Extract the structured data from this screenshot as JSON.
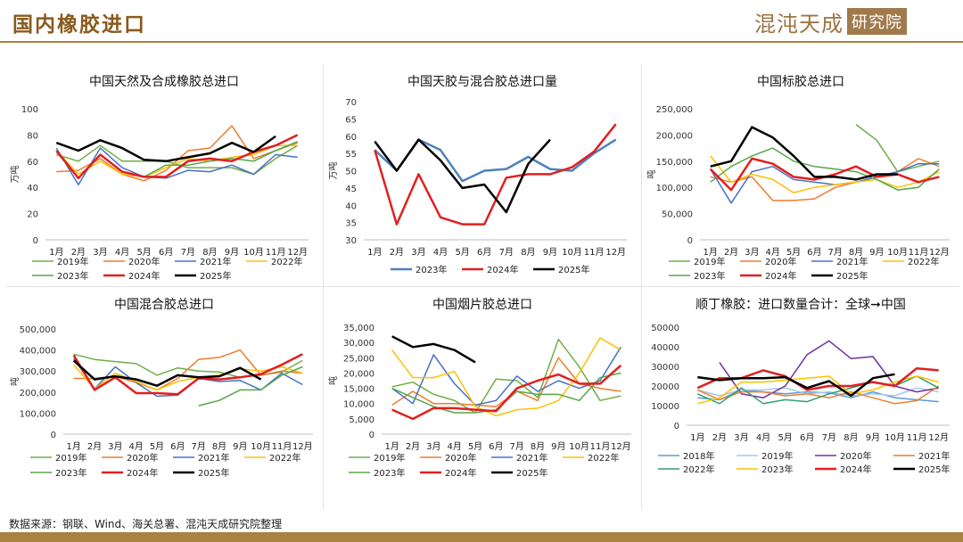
{
  "header": {
    "title": "国内橡胶进口",
    "logo_text": "混沌天成",
    "logo_badge": "研究院"
  },
  "source_note": "数据来源：钢联、Wind、海关总署、混沌天成研究院整理",
  "chart_data": [
    {
      "type": "line",
      "title": "中国天然及合成橡胶总进口",
      "ylabel": "万吨",
      "ylim": [
        0,
        100
      ],
      "yticks": [
        0,
        20,
        40,
        60,
        80,
        100
      ],
      "ytick_labels": [
        "0",
        "20",
        "40",
        "60",
        "80",
        "100"
      ],
      "categories": [
        "1月",
        "2月",
        "3月",
        "4月",
        "5月",
        "6月",
        "7月",
        "8月",
        "9月",
        "10月",
        "11月",
        "12月"
      ],
      "series": [
        {
          "name": "2019年",
          "color": "#70ad47",
          "width": 1.5,
          "values": [
            65,
            60,
            72,
            60,
            60,
            60,
            55,
            55,
            55,
            50,
            62,
            72
          ]
        },
        {
          "name": "2020年",
          "color": "#ed7d31",
          "width": 1.5,
          "values": [
            52,
            53,
            62,
            50,
            45,
            53,
            68,
            70,
            87,
            62,
            68,
            74
          ]
        },
        {
          "name": "2021年",
          "color": "#4472c4",
          "width": 1.5,
          "values": [
            70,
            42,
            70,
            55,
            48,
            47,
            53,
            52,
            57,
            50,
            65,
            63
          ]
        },
        {
          "name": "2022年",
          "color": "#ffc000",
          "width": 1.5,
          "values": [
            68,
            50,
            60,
            50,
            48,
            55,
            62,
            60,
            63,
            65,
            72,
            72
          ]
        },
        {
          "name": "2023年",
          "color": "#55a84a",
          "width": 1.5,
          "values": [
            67,
            47,
            65,
            52,
            48,
            57,
            57,
            60,
            62,
            60,
            68,
            75
          ]
        },
        {
          "name": "2024年",
          "color": "#e02020",
          "width": 2.5,
          "values": [
            68,
            47,
            65,
            52,
            48,
            48,
            60,
            62,
            60,
            67,
            72,
            80
          ]
        },
        {
          "name": "2025年",
          "color": "#000000",
          "width": 2.5,
          "values": [
            74,
            68,
            76,
            70,
            61,
            60,
            63,
            66,
            74,
            67,
            79,
            null
          ]
        }
      ]
    },
    {
      "type": "line",
      "title": "中国天胶与混合胶总进口量",
      "ylabel": "万吨",
      "ylim": [
        30,
        70
      ],
      "yticks": [
        30,
        35,
        40,
        45,
        50,
        55,
        60,
        65,
        70
      ],
      "ytick_labels": [
        "30",
        "35",
        "40",
        "45",
        "50",
        "55",
        "60",
        "65",
        "70"
      ],
      "categories": [
        "1月",
        "2月",
        "3月",
        "4月",
        "5月",
        "6月",
        "7月",
        "8月",
        "9月",
        "10月",
        "11月",
        "12月"
      ],
      "series": [
        {
          "name": "2023年",
          "color": "#4e81bd",
          "width": 2.5,
          "values": [
            56,
            50,
            59,
            56,
            47,
            50,
            50.5,
            54,
            50.5,
            50,
            55,
            59
          ]
        },
        {
          "name": "2024年",
          "color": "#e02020",
          "width": 2.5,
          "values": [
            56,
            34.5,
            49,
            36.5,
            34.5,
            34.5,
            48,
            49,
            49,
            51,
            55.5,
            63.5
          ]
        },
        {
          "name": "2025年",
          "color": "#000000",
          "width": 2.5,
          "values": [
            58.5,
            50,
            59,
            53,
            45,
            46,
            38,
            52,
            59,
            null,
            null,
            null
          ]
        }
      ]
    },
    {
      "type": "line",
      "title": "中国标胶总进口",
      "ylabel": "吨",
      "ylim": [
        0,
        250000
      ],
      "yticks": [
        0,
        50000,
        100000,
        150000,
        200000,
        250000
      ],
      "ytick_labels": [
        "0",
        "50,000",
        "100,000",
        "150,000",
        "200,000",
        "250,000"
      ],
      "categories": [
        "1月",
        "2月",
        "3月",
        "4月",
        "5月",
        "6月",
        "7月",
        "8月",
        "9月",
        "10月",
        "11月",
        "12月"
      ],
      "series": [
        {
          "name": "2019年",
          "color": "#70ad47",
          "width": 1.5,
          "values": [
            null,
            null,
            null,
            null,
            null,
            null,
            null,
            220000,
            190000,
            130000,
            140000,
            150000
          ]
        },
        {
          "name": "2020年",
          "color": "#ed7d31",
          "width": 1.5,
          "values": [
            120000,
            110000,
            120000,
            75000,
            75000,
            78000,
            100000,
            110000,
            120000,
            130000,
            155000,
            140000
          ]
        },
        {
          "name": "2021年",
          "color": "#4472c4",
          "width": 1.5,
          "values": [
            135000,
            70000,
            130000,
            140000,
            115000,
            110000,
            105000,
            110000,
            120000,
            130000,
            145000,
            145000
          ]
        },
        {
          "name": "2022年",
          "color": "#ffc000",
          "width": 1.5,
          "values": [
            160000,
            110000,
            125000,
            115000,
            90000,
            100000,
            105000,
            110000,
            115000,
            100000,
            110000,
            130000
          ]
        },
        {
          "name": "2023年",
          "color": "#55a84a",
          "width": 1.5,
          "values": [
            110000,
            140000,
            160000,
            175000,
            150000,
            140000,
            135000,
            130000,
            115000,
            95000,
            100000,
            135000
          ]
        },
        {
          "name": "2024年",
          "color": "#e02020",
          "width": 2.5,
          "values": [
            135000,
            95000,
            155000,
            145000,
            120000,
            115000,
            125000,
            140000,
            120000,
            125000,
            110000,
            120000
          ]
        },
        {
          "name": "2025年",
          "color": "#000000",
          "width": 2.5,
          "values": [
            140000,
            150000,
            215000,
            195000,
            160000,
            120000,
            120000,
            115000,
            125000,
            125000,
            null,
            null
          ]
        }
      ]
    },
    {
      "type": "line",
      "title": "中国混合胶总进口",
      "ylabel": "吨",
      "ylim": [
        0,
        500000
      ],
      "yticks": [
        0,
        100000,
        200000,
        300000,
        400000,
        500000
      ],
      "ytick_labels": [
        "0",
        "100,000",
        "200,000",
        "300,000",
        "400,000",
        "500,000"
      ],
      "categories": [
        "1月",
        "2月",
        "3月",
        "4月",
        "5月",
        "6月",
        "7月",
        "8月",
        "9月",
        "10月",
        "11月",
        "12月"
      ],
      "series": [
        {
          "name": "2019年",
          "color": "#70ad47",
          "width": 1.5,
          "values": [
            380000,
            355000,
            345000,
            335000,
            280000,
            315000,
            300000,
            295000,
            270000,
            280000,
            295000,
            350000
          ]
        },
        {
          "name": "2020年",
          "color": "#ed7d31",
          "width": 1.5,
          "values": [
            265000,
            265000,
            275000,
            245000,
            210000,
            265000,
            355000,
            365000,
            400000,
            280000,
            300000,
            290000
          ]
        },
        {
          "name": "2021年",
          "color": "#4472c4",
          "width": 1.5,
          "values": [
            360000,
            215000,
            320000,
            245000,
            180000,
            185000,
            265000,
            250000,
            255000,
            210000,
            290000,
            235000
          ]
        },
        {
          "name": "2022年",
          "color": "#ffc000",
          "width": 1.5,
          "values": [
            330000,
            215000,
            290000,
            250000,
            210000,
            250000,
            270000,
            280000,
            310000,
            300000,
            320000,
            290000
          ]
        },
        {
          "name": "2023年",
          "color": "#55a84a",
          "width": 1.5,
          "values": [
            null,
            null,
            null,
            null,
            null,
            null,
            135000,
            160000,
            210000,
            210000,
            280000,
            320000
          ]
        },
        {
          "name": "2024年",
          "color": "#e02020",
          "width": 2.5,
          "values": [
            375000,
            210000,
            270000,
            195000,
            195000,
            190000,
            265000,
            260000,
            270000,
            285000,
            330000,
            380000
          ]
        },
        {
          "name": "2025年",
          "color": "#000000",
          "width": 2.5,
          "values": [
            350000,
            260000,
            275000,
            260000,
            230000,
            280000,
            270000,
            275000,
            315000,
            260000,
            null,
            null
          ]
        }
      ]
    },
    {
      "type": "line",
      "title": "中国烟片胶总进口",
      "ylabel": "吨",
      "ylim": [
        0,
        35000
      ],
      "yticks": [
        0,
        5000,
        10000,
        15000,
        20000,
        25000,
        30000,
        35000
      ],
      "ytick_labels": [
        "0",
        "5,000",
        "10,000",
        "15,000",
        "20,000",
        "25,000",
        "30,000",
        "35,000"
      ],
      "categories": [
        "1月",
        "2月",
        "3月",
        "4月",
        "5月",
        "6月",
        "7月",
        "8月",
        "9月",
        "10月",
        "11月",
        "12月"
      ],
      "series": [
        {
          "name": "2019年",
          "color": "#70ad47",
          "width": 1.5,
          "values": [
            15500,
            17000,
            13000,
            11000,
            7000,
            18000,
            17500,
            12000,
            31000,
            22000,
            11000,
            12500
          ]
        },
        {
          "name": "2020年",
          "color": "#ed7d31",
          "width": 1.5,
          "values": [
            9500,
            14000,
            10000,
            10000,
            9500,
            9000,
            14000,
            11000,
            25000,
            16500,
            15000,
            14000
          ]
        },
        {
          "name": "2021年",
          "color": "#4472c4",
          "width": 1.5,
          "values": [
            15000,
            10000,
            26000,
            16500,
            9500,
            11000,
            19000,
            14000,
            17500,
            15000,
            17500,
            28500
          ]
        },
        {
          "name": "2022年",
          "color": "#ffc000",
          "width": 1.5,
          "values": [
            27500,
            18500,
            18500,
            20500,
            9000,
            6000,
            8000,
            8500,
            11000,
            20000,
            31500,
            27500
          ]
        },
        {
          "name": "2023年",
          "color": "#55a84a",
          "width": 1.5,
          "values": [
            15000,
            12000,
            9000,
            7000,
            7000,
            8000,
            14000,
            13000,
            13000,
            11000,
            18500,
            20000
          ]
        },
        {
          "name": "2024年",
          "color": "#e02020",
          "width": 2.5,
          "values": [
            8000,
            5000,
            8500,
            8500,
            8000,
            7500,
            15000,
            17500,
            19500,
            16500,
            16500,
            22500
          ]
        },
        {
          "name": "2025年",
          "color": "#000000",
          "width": 2.5,
          "values": [
            32000,
            28500,
            29500,
            27500,
            23500,
            null,
            null,
            null,
            null,
            null,
            null,
            null
          ]
        }
      ]
    },
    {
      "type": "line",
      "title": "顺丁橡胶：进口数量合计：全球➞中国",
      "ylabel": "",
      "ylim": [
        0,
        50000
      ],
      "yticks": [
        0,
        10000,
        20000,
        30000,
        40000,
        50000
      ],
      "ytick_labels": [
        "0",
        "10000",
        "20000",
        "30000",
        "40000",
        "50000"
      ],
      "categories": [
        "1月",
        "2月",
        "3月",
        "4月",
        "5月",
        "6月",
        "7月",
        "8月",
        "9月",
        "10月",
        "11月",
        "12月"
      ],
      "series": [
        {
          "name": "2018年",
          "color": "#5b9bd5",
          "width": 1.5,
          "values": [
            14000,
            13000,
            18000,
            17000,
            16000,
            17000,
            16500,
            14000,
            17000,
            14000,
            13000,
            12000
          ]
        },
        {
          "name": "2019年",
          "color": "#a5c8e8",
          "width": 1.5,
          "values": [
            18000,
            15000,
            18000,
            18000,
            19000,
            16000,
            17000,
            15000,
            16000,
            15000,
            19000,
            17000
          ]
        },
        {
          "name": "2020年",
          "color": "#7030a0",
          "width": 1.5,
          "values": [
            null,
            32000,
            16000,
            14000,
            20000,
            36000,
            43000,
            34000,
            35000,
            20000,
            17000,
            19000
          ]
        },
        {
          "name": "2021年",
          "color": "#ed7d31",
          "width": 1.5,
          "values": [
            18000,
            13000,
            17000,
            17000,
            15000,
            16000,
            14000,
            17000,
            14000,
            11000,
            12500,
            20000
          ]
        },
        {
          "name": "2022年",
          "color": "#2f9e74",
          "width": 1.5,
          "values": [
            16000,
            11000,
            19000,
            11000,
            13000,
            12000,
            16000,
            19000,
            22000,
            20000,
            25000,
            19000
          ]
        },
        {
          "name": "2023年",
          "color": "#ffc000",
          "width": 1.5,
          "values": [
            11000,
            14000,
            22000,
            22000,
            23000,
            24000,
            25000,
            16000,
            18000,
            22000,
            25000,
            22000
          ]
        },
        {
          "name": "2024年",
          "color": "#e02020",
          "width": 2.5,
          "values": [
            19000,
            24000,
            24000,
            28000,
            25000,
            18000,
            20000,
            20000,
            22000,
            20000,
            29000,
            28000
          ]
        },
        {
          "name": "2025年",
          "color": "#000000",
          "width": 2.5,
          "values": [
            24500,
            23000,
            24000,
            24000,
            24500,
            19000,
            22500,
            15000,
            24000,
            26000,
            null,
            null
          ]
        }
      ]
    }
  ]
}
